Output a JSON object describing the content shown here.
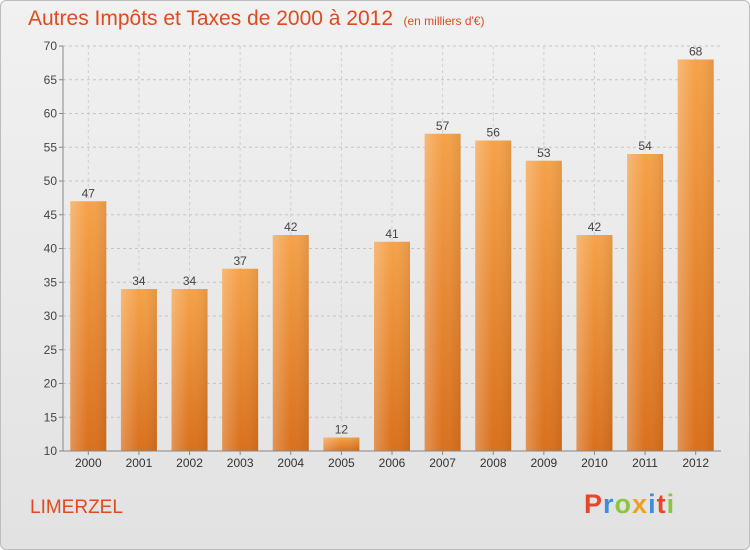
{
  "chart_data": {
    "type": "bar",
    "title": "Autres Impôts et Taxes de 2000 à 2012",
    "subtitle": "(en milliers d'€)",
    "categories": [
      "2000",
      "2001",
      "2002",
      "2003",
      "2004",
      "2005",
      "2006",
      "2007",
      "2008",
      "2009",
      "2010",
      "2011",
      "2012"
    ],
    "values": [
      47,
      34,
      34,
      37,
      42,
      12,
      41,
      57,
      56,
      53,
      42,
      54,
      68
    ],
    "ylim": [
      10,
      70
    ],
    "yticks": [
      10,
      15,
      20,
      25,
      30,
      35,
      40,
      45,
      50,
      55,
      60,
      65,
      70
    ],
    "grid": true,
    "bar_color": "#f0963a"
  },
  "footer": {
    "place": "LIMERZEL",
    "logo_letters": [
      "P",
      "r",
      "o",
      "x",
      "i",
      "t",
      "i"
    ],
    "logo_colors": [
      "#e8462a",
      "#3a8fd8",
      "#8cc63f",
      "#f0a020",
      "#3a8fd8",
      "#e8462a",
      "#8cc63f"
    ]
  }
}
